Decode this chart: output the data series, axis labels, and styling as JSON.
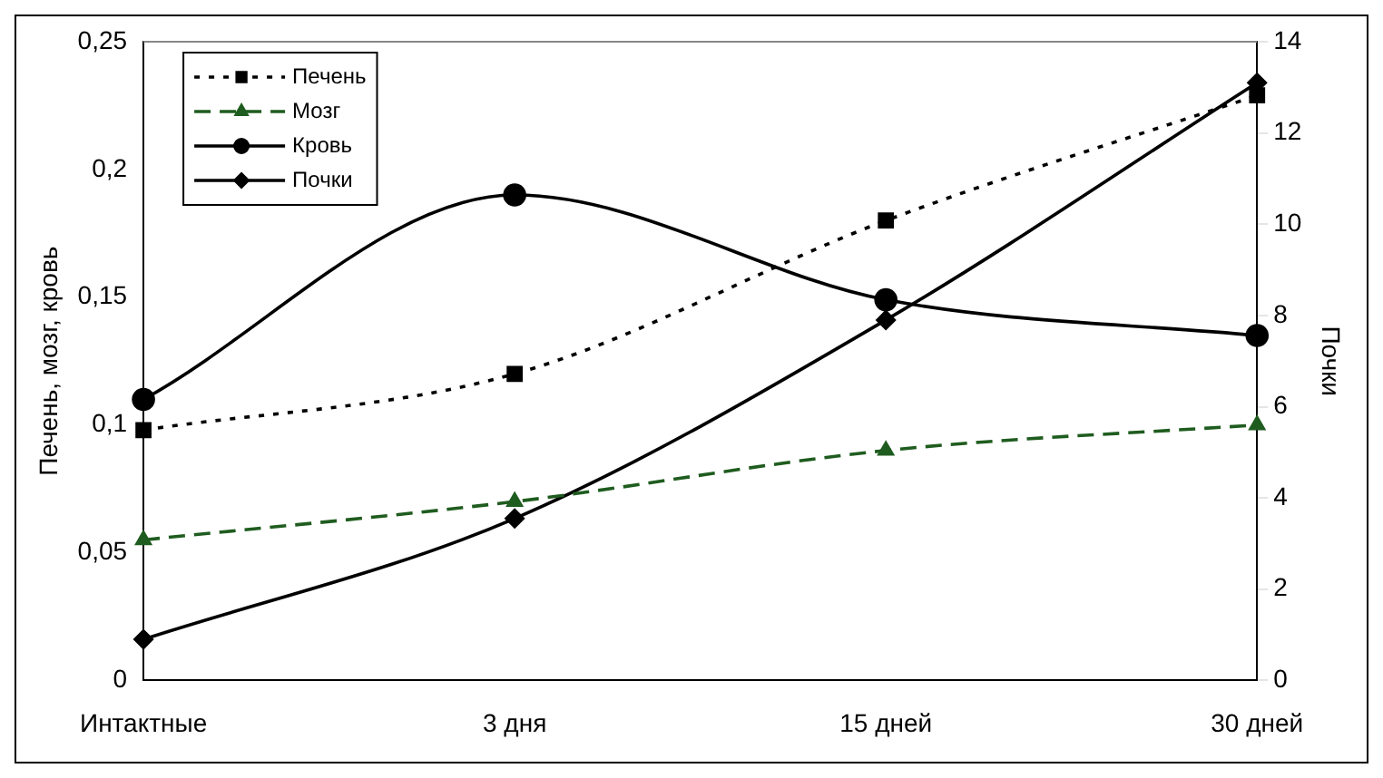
{
  "chart_data": {
    "type": "line",
    "categories": [
      "Интактные",
      "3 дня",
      "15 дней",
      "30 дней"
    ],
    "ylabel": "Печень, мозг, кровь",
    "y2label": "Почки",
    "ylim": [
      0,
      0.25
    ],
    "yticks": [
      {
        "value": 0,
        "label": "0"
      },
      {
        "value": 0.05,
        "label": "0,05"
      },
      {
        "value": 0.1,
        "label": "0,1"
      },
      {
        "value": 0.15,
        "label": "0,15"
      },
      {
        "value": 0.2,
        "label": "0,2"
      },
      {
        "value": 0.25,
        "label": "0,25"
      }
    ],
    "y2lim": [
      0,
      14
    ],
    "y2ticks": [
      0,
      2,
      4,
      6,
      8,
      10,
      12,
      14
    ],
    "grid": false,
    "legend": "top left",
    "series": [
      {
        "name": "Печень",
        "color": "#000000",
        "marker": "square",
        "line_style": "dotted",
        "values": [
          0.098,
          0.12,
          0.18,
          0.229
        ]
      },
      {
        "name": "Мозг",
        "color": "#1f5c1f",
        "marker": "triangle",
        "line_style": "dashed",
        "values": [
          0.055,
          0.07,
          0.09,
          0.1
        ]
      },
      {
        "name": "Кровь",
        "color": "#000000",
        "marker": "circle",
        "line_style": "solid",
        "values": [
          0.11,
          0.19,
          0.149,
          0.135
        ]
      },
      {
        "name": "Почки",
        "color": "#000000",
        "marker": "diamond",
        "line_style": "solid",
        "axis": "y2",
        "values": [
          0.9,
          3.55,
          7.9,
          13.1
        ]
      }
    ]
  }
}
